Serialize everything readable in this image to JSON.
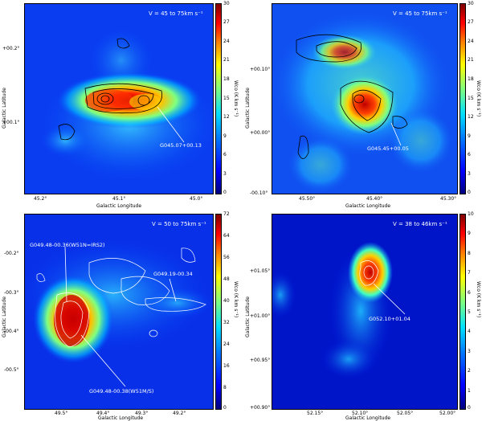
{
  "panels": [
    {
      "velocity": "V = 45 to 75km s⁻¹",
      "colorbar_label": "Wco (K km s⁻¹)",
      "colorbar_ticks": [
        "30",
        "27",
        "24",
        "21",
        "18",
        "15",
        "12",
        "9",
        "6",
        "3",
        "0"
      ],
      "x_label": "Galactic Longitude",
      "y_label": "Galactic Latitude",
      "x_ticks": [
        "45.2°",
        "45.1°",
        "45.0°"
      ],
      "y_ticks": [
        "+00.2°",
        "+00.1°"
      ],
      "sources": [
        "G045.07+00.13"
      ]
    },
    {
      "velocity": "V = 45 to 75km s⁻¹",
      "colorbar_label": "Wco (K km s⁻¹)",
      "colorbar_ticks": [
        "30",
        "27",
        "24",
        "21",
        "18",
        "15",
        "12",
        "9",
        "6",
        "3",
        "0"
      ],
      "x_label": "Galactic Longitude",
      "y_label": "Galactic Latitude",
      "x_ticks": [
        "45.50°",
        "45.40°",
        "45.30°"
      ],
      "y_ticks": [
        "+00.10°",
        "+00.00°",
        "-00.10°"
      ],
      "sources": [
        "G045.45+00.05"
      ]
    },
    {
      "velocity": "V = 50 to 75km s⁻¹",
      "colorbar_label": "Wco (K km s⁻¹)",
      "colorbar_ticks": [
        "72",
        "64",
        "56",
        "48",
        "40",
        "32",
        "24",
        "16",
        "8",
        "0"
      ],
      "x_label": "Galactic Longitude",
      "y_label": "Galactic Latitude",
      "x_ticks": [
        "49.5°",
        "49.4°",
        "49.3°",
        "49.2°"
      ],
      "y_ticks": [
        "-00.2°",
        "-00.3°",
        "-00.4°",
        "-00.5°"
      ],
      "sources": [
        "G049.48-00.36(W51N=IRS2)",
        "G049.19-00.34",
        "G049.48-00.38(W51M/S)"
      ]
    },
    {
      "velocity": "V = 38 to 46km s⁻¹",
      "colorbar_label": "Wco (K km s⁻¹)",
      "colorbar_ticks": [
        "10",
        "9",
        "8",
        "7",
        "6",
        "5",
        "4",
        "3",
        "2",
        "1",
        "0"
      ],
      "x_label": "Galactic Longitude",
      "y_label": "Galactic Latitude",
      "x_ticks": [
        "52.15°",
        "52.10°",
        "52.05°",
        "52.00°"
      ],
      "y_ticks": [
        "+01.05°",
        "+01.00°",
        "+00.95°",
        "+00.90°"
      ],
      "sources": [
        "G052.10+01.04"
      ]
    }
  ]
}
